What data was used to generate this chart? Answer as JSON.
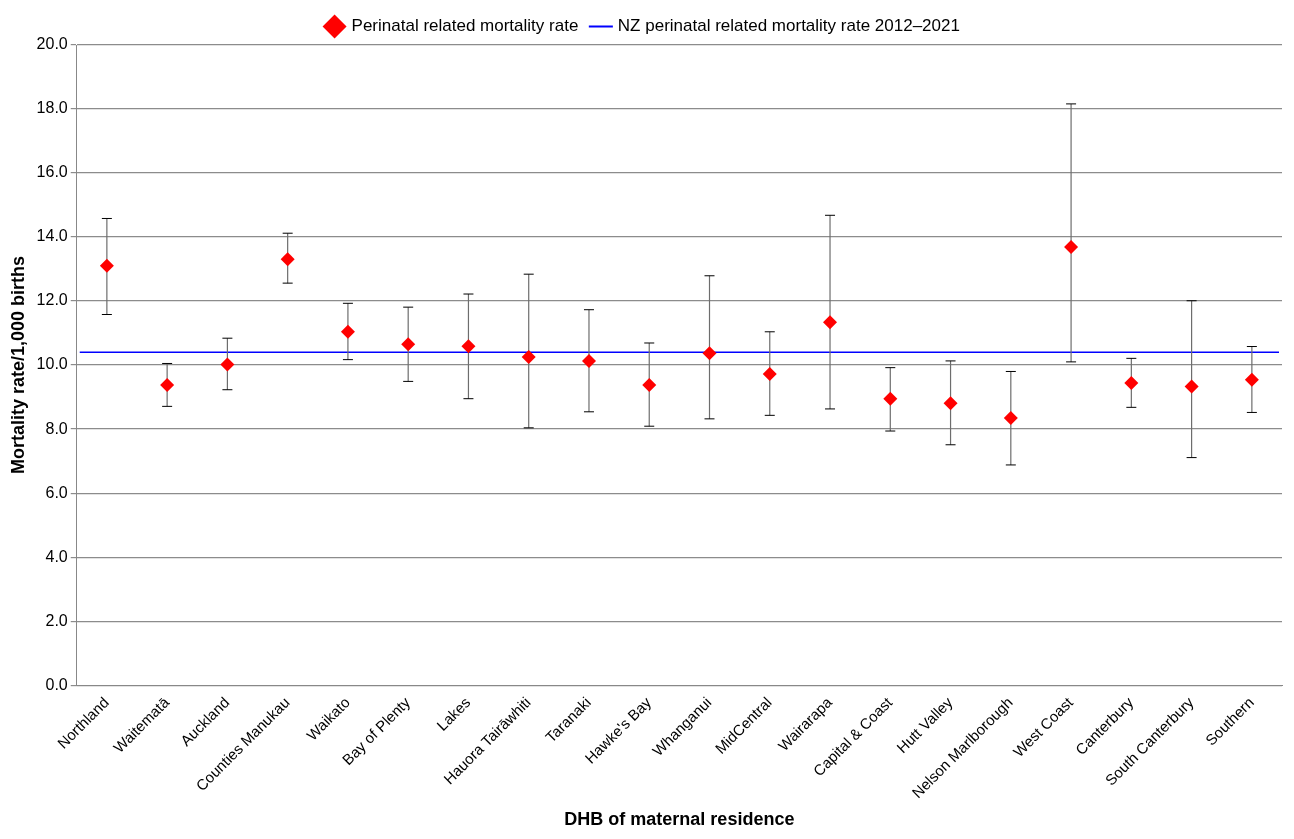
{
  "chart_data": {
    "type": "scatter",
    "xlabel": "DHB of maternal residence",
    "ylabel": "Mortality rate/1,000 births",
    "categories": [
      "Northland",
      "Waitematā",
      "Auckland",
      "Counties Manukau",
      "Waikato",
      "Bay of Plenty",
      "Lakes",
      "Hauora Tairāwhiti",
      "Taranaki",
      "Hawke's Bay",
      "Whanganui",
      "MidCentral",
      "Wairarapa",
      "Capital & Coast",
      "Hutt Valley",
      "Nelson Marlborough",
      "West Coast",
      "Canterbury",
      "South Canterbury",
      "Southern"
    ],
    "series": [
      {
        "name": "Perinatal related mortality rate",
        "color": "#ff0000",
        "values": [
          13.1,
          9.38,
          10.02,
          13.31,
          11.04,
          10.65,
          10.59,
          10.25,
          10.13,
          9.38,
          10.37,
          9.72,
          11.34,
          8.95,
          8.81,
          8.35,
          13.69,
          9.44,
          9.33,
          9.54
        ],
        "errors": [
          [
            11.58,
            14.58
          ],
          [
            8.71,
            10.05
          ],
          [
            9.23,
            10.84
          ],
          [
            12.56,
            14.12
          ],
          [
            10.17,
            11.93
          ],
          [
            9.49,
            11.81
          ],
          [
            8.95,
            12.22
          ],
          [
            8.04,
            12.84
          ],
          [
            8.54,
            11.73
          ],
          [
            8.09,
            10.69
          ],
          [
            8.32,
            12.79
          ],
          [
            8.43,
            11.04
          ],
          [
            8.63,
            14.68
          ],
          [
            7.94,
            9.92
          ],
          [
            7.51,
            10.13
          ],
          [
            6.88,
            9.8
          ],
          [
            10.1,
            18.16
          ],
          [
            8.68,
            10.21
          ],
          [
            7.11,
            12.01
          ],
          [
            8.52,
            10.58
          ]
        ]
      }
    ],
    "ref_lines": [
      {
        "axis": "y",
        "value": 10.4,
        "label": "NZ perinatal related mortality rate 2012–2021",
        "color": "#0000ff"
      }
    ],
    "ylim": [
      0,
      20
    ],
    "yticks": [
      {
        "value": 0,
        "label": "0.0"
      },
      {
        "value": 2,
        "label": "2.0"
      },
      {
        "value": 4,
        "label": "4.0"
      },
      {
        "value": 6,
        "label": "6.0"
      },
      {
        "value": 8,
        "label": "8.0"
      },
      {
        "value": 10,
        "label": "10.0"
      },
      {
        "value": 12,
        "label": "12.0"
      },
      {
        "value": 14,
        "label": "14.0"
      },
      {
        "value": 16,
        "label": "16.0"
      },
      {
        "value": 18,
        "label": "18.0"
      },
      {
        "value": 20,
        "label": "20.0"
      }
    ],
    "grid": "y",
    "legend": "top",
    "marker": "diamond"
  }
}
